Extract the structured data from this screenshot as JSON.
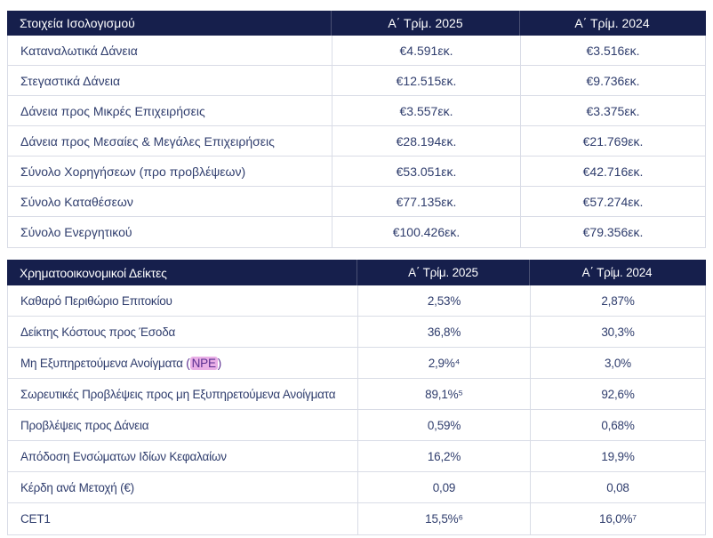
{
  "colors": {
    "header_bg": "#161f4c",
    "header_text": "#ffffff",
    "body_text": "#2f3d6d",
    "border": "#d9dce6",
    "npe_highlight_bg": "#e9aee6",
    "npe_text": "#5b2f91"
  },
  "balance_table": {
    "title": "Στοιχεία Ισολογισμού",
    "col_2025": "Α΄ Τρίμ. 2025",
    "col_2024": "Α΄ Τρίμ. 2024",
    "rows": [
      {
        "label": "Καταναλωτικά Δάνεια",
        "q2025": "€4.591εκ.",
        "q2024": "€3.516εκ."
      },
      {
        "label": "Στεγαστικά Δάνεια",
        "q2025": "€12.515εκ.",
        "q2024": "€9.736εκ."
      },
      {
        "label": "Δάνεια προς Μικρές Επιχειρήσεις",
        "q2025": "€3.557εκ.",
        "q2024": "€3.375εκ."
      },
      {
        "label": "Δάνεια προς Μεσαίες & Μεγάλες Επιχειρήσεις",
        "q2025": "€28.194εκ.",
        "q2024": "€21.769εκ."
      },
      {
        "label": "Σύνολο Χορηγήσεων (προ προβλέψεων)",
        "q2025": "€53.051εκ.",
        "q2024": "€42.716εκ."
      },
      {
        "label": "Σύνολο Καταθέσεων",
        "q2025": "€77.135εκ.",
        "q2024": "€57.274εκ."
      },
      {
        "label": "Σύνολο Ενεργητικού",
        "q2025": "€100.426εκ.",
        "q2024": "€79.356εκ."
      }
    ]
  },
  "ratios_table": {
    "title": "Χρηματοοικονομικοί Δείκτες",
    "col_2025": "Α΄ Τρίμ. 2025",
    "col_2024": "Α΄ Τρίμ. 2024",
    "rows": [
      {
        "label": "Καθαρό Περιθώριο Επιτοκίου",
        "q2025": "2,53%",
        "q2024": "2,87%"
      },
      {
        "label": "Δείκτης Κόστους προς Έσοδα",
        "q2025": "36,8%",
        "q2024": "30,3%"
      },
      {
        "label": "Μη Εξυπηρετούμενα Ανοίγματα (NPE)",
        "label_prefix": "Μη Εξυπηρετούμενα Ανοίγματα ",
        "label_paren_open": "(",
        "label_highlight": "NPE",
        "label_paren_close": ")",
        "q2025": "2,9%⁴",
        "q2024": "3,0%"
      },
      {
        "label": "Σωρευτικές Προβλέψεις προς μη Εξυπηρετούμενα Ανοίγματα",
        "q2025": "89,1%⁵",
        "q2024": "92,6%"
      },
      {
        "label": "Προβλέψεις προς Δάνεια",
        "q2025": "0,59%",
        "q2024": "0,68%"
      },
      {
        "label": "Απόδοση Ενσώματων Ιδίων Κεφαλαίων",
        "q2025": "16,2%",
        "q2024": "19,9%"
      },
      {
        "label": "Κέρδη ανά Μετοχή (€)",
        "q2025": "0,09",
        "q2024": "0,08"
      },
      {
        "label": "CET1",
        "q2025": "15,5%⁶",
        "q2024": "16,0%⁷"
      }
    ]
  }
}
